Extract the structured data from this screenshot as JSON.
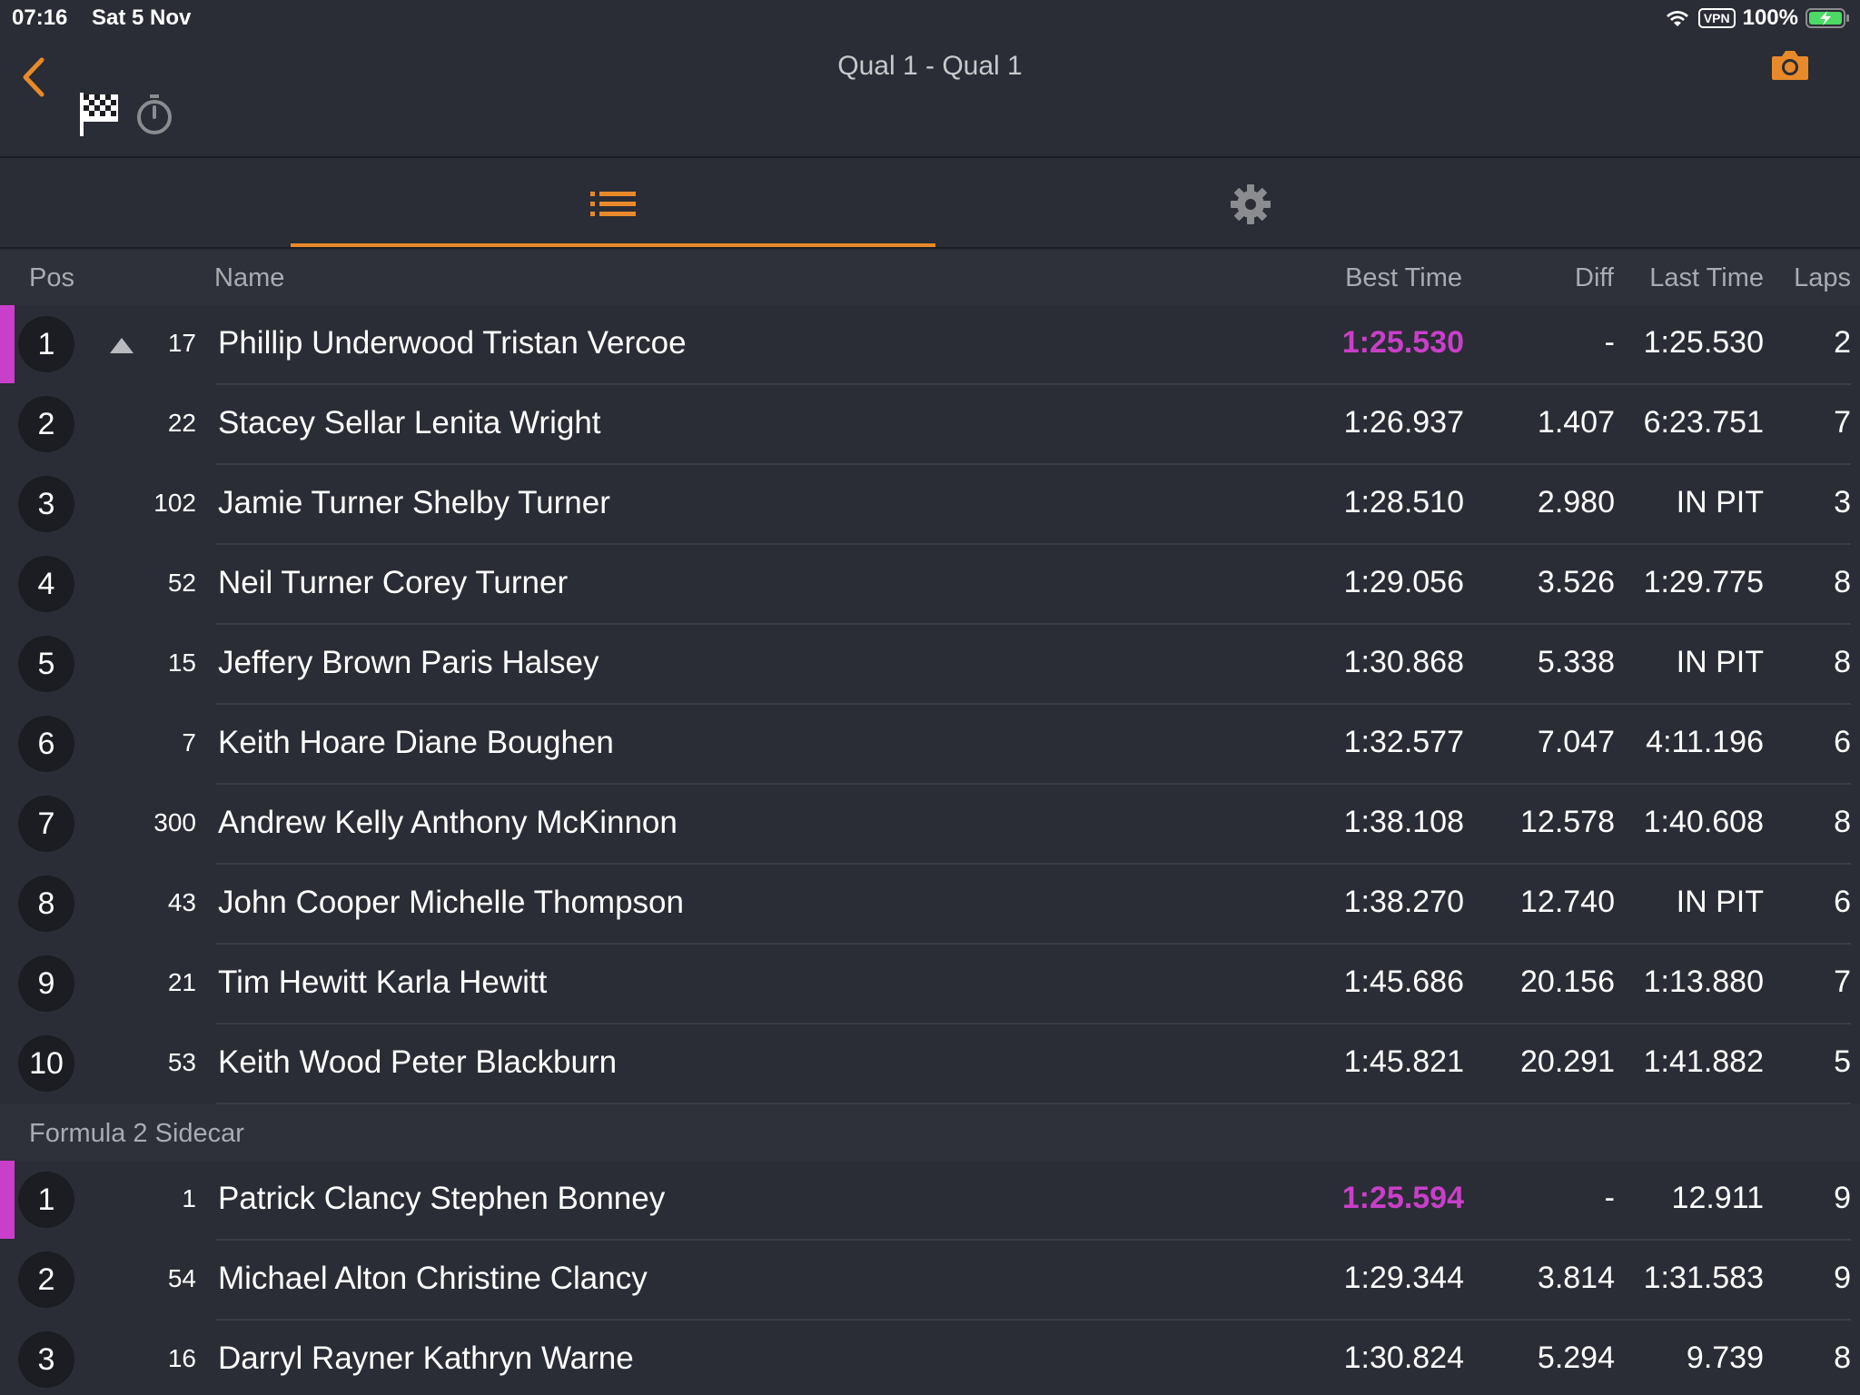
{
  "status_bar": {
    "time": "07:16",
    "date": "Sat 5 Nov",
    "vpn": "VPN",
    "battery": "100%"
  },
  "header": {
    "title": "Qual 1 -  Qual 1"
  },
  "columns": {
    "pos": "Pos",
    "name": "Name",
    "best": "Best Time",
    "diff": "Diff",
    "last": "Last Time",
    "laps": "Laps"
  },
  "colors": {
    "accent": "#e8892a",
    "leader": "#c93fc9",
    "background": "#2a2d35"
  },
  "class1": {
    "rows": [
      {
        "pos": "1",
        "num": "17",
        "name": "Phillip Underwood Tristan Vercoe",
        "best": "1:25.530",
        "diff": "-",
        "last": "1:25.530",
        "laps": "2"
      },
      {
        "pos": "2",
        "num": "22",
        "name": "Stacey Sellar Lenita Wright",
        "best": "1:26.937",
        "diff": "1.407",
        "last": "6:23.751",
        "laps": "7"
      },
      {
        "pos": "3",
        "num": "102",
        "name": "Jamie Turner Shelby Turner",
        "best": "1:28.510",
        "diff": "2.980",
        "last": "IN PIT",
        "laps": "3"
      },
      {
        "pos": "4",
        "num": "52",
        "name": "Neil Turner Corey Turner",
        "best": "1:29.056",
        "diff": "3.526",
        "last": "1:29.775",
        "laps": "8"
      },
      {
        "pos": "5",
        "num": "15",
        "name": "Jeffery Brown Paris Halsey",
        "best": "1:30.868",
        "diff": "5.338",
        "last": "IN PIT",
        "laps": "8"
      },
      {
        "pos": "6",
        "num": "7",
        "name": "Keith Hoare Diane Boughen",
        "best": "1:32.577",
        "diff": "7.047",
        "last": "4:11.196",
        "laps": "6"
      },
      {
        "pos": "7",
        "num": "300",
        "name": "Andrew Kelly Anthony McKinnon",
        "best": "1:38.108",
        "diff": "12.578",
        "last": "1:40.608",
        "laps": "8"
      },
      {
        "pos": "8",
        "num": "43",
        "name": "John Cooper Michelle Thompson",
        "best": "1:38.270",
        "diff": "12.740",
        "last": "IN PIT",
        "laps": "6"
      },
      {
        "pos": "9",
        "num": "21",
        "name": "Tim Hewitt Karla Hewitt",
        "best": "1:45.686",
        "diff": "20.156",
        "last": "1:13.880",
        "laps": "7"
      },
      {
        "pos": "10",
        "num": "53",
        "name": "Keith Wood Peter Blackburn",
        "best": "1:45.821",
        "diff": "20.291",
        "last": "1:41.882",
        "laps": "5"
      }
    ]
  },
  "class2": {
    "title": "Formula 2 Sidecar",
    "rows": [
      {
        "pos": "1",
        "num": "1",
        "name": "Patrick Clancy Stephen Bonney",
        "best": "1:25.594",
        "diff": "-",
        "last": "12.911",
        "laps": "9"
      },
      {
        "pos": "2",
        "num": "54",
        "name": "Michael Alton Christine Clancy",
        "best": "1:29.344",
        "diff": "3.814",
        "last": "1:31.583",
        "laps": "9"
      },
      {
        "pos": "3",
        "num": "16",
        "name": "Darryl Rayner Kathryn Warne",
        "best": "1:30.824",
        "diff": "5.294",
        "last": "9.739",
        "laps": "8"
      }
    ]
  }
}
